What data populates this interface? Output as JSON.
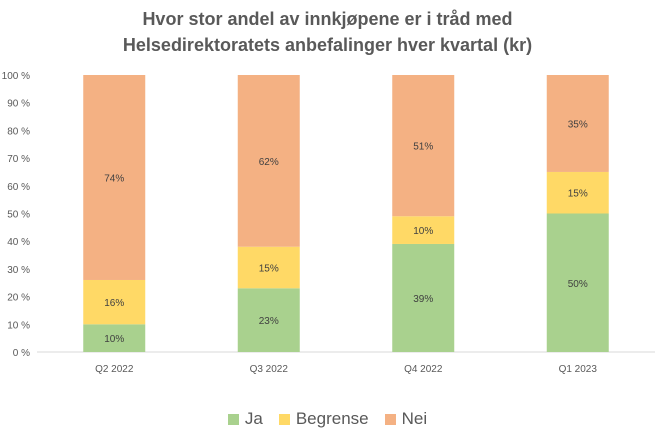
{
  "chart_data": {
    "type": "bar",
    "stacked": true,
    "title_lines": [
      "Hvor stor andel av innkjøpene er i tråd med",
      "Helsedirektoratets anbefalinger hver kvartal (kr)"
    ],
    "categories": [
      "Q2 2022",
      "Q3 2022",
      "Q4 2022",
      "Q1 2023"
    ],
    "series": [
      {
        "name": "Ja",
        "color": "#A9D18E",
        "values": [
          10,
          23,
          39,
          50
        ],
        "labels": [
          "10%",
          "23%",
          "39%",
          "50%"
        ]
      },
      {
        "name": "Begrense",
        "color": "#FFD966",
        "values": [
          16,
          15,
          10,
          15
        ],
        "labels": [
          "16%",
          "15%",
          "10%",
          "15%"
        ]
      },
      {
        "name": "Nei",
        "color": "#F4B183",
        "values": [
          74,
          62,
          51,
          35
        ],
        "labels": [
          "74%",
          "62%",
          "51%",
          "35%"
        ]
      }
    ],
    "y_ticks": [
      "0 %",
      "10 %",
      "20 %",
      "30 %",
      "40 %",
      "50 %",
      "60 %",
      "70 %",
      "80 %",
      "90 %",
      "100 %"
    ],
    "ylim": [
      0,
      100
    ],
    "legend_position": "bottom",
    "grid": false
  }
}
